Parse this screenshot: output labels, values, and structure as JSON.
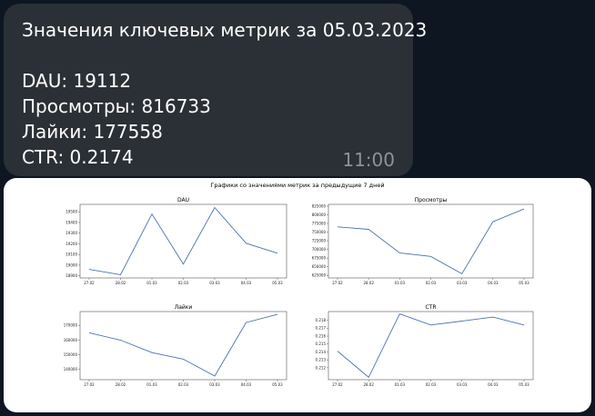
{
  "message": {
    "lines": [
      "Значения ключевых метрик за 05.03.2023",
      "",
      "DAU: 19112",
      "Просмотры: 816733",
      "Лайки: 177558",
      "CTR: 0.2174"
    ],
    "time": "11:00"
  },
  "figure": {
    "suptitle": "Графики со значениями метрик за предыдущие 7 дней",
    "line_color": "#4c72b0"
  },
  "chart_data": [
    {
      "type": "line",
      "title": "DAU",
      "categories": [
        "27.02",
        "28.02",
        "01.03",
        "02.03",
        "03.03",
        "04.03",
        "05.03"
      ],
      "values": [
        18960,
        18910,
        19480,
        19010,
        19540,
        19205,
        19112
      ],
      "yticks": [
        18900,
        19000,
        19100,
        19200,
        19300,
        19400,
        19500
      ],
      "ylim": [
        18880,
        19570
      ]
    },
    {
      "type": "line",
      "title": "Просмотры",
      "categories": [
        "27.02",
        "28.02",
        "01.03",
        "02.03",
        "03.03",
        "04.03",
        "05.03"
      ],
      "values": [
        765000,
        758000,
        690000,
        680000,
        630000,
        780000,
        816733
      ],
      "yticks": [
        625000,
        650000,
        675000,
        700000,
        725000,
        750000,
        775000,
        800000,
        825000
      ],
      "ylim": [
        618000,
        830000
      ]
    },
    {
      "type": "line",
      "title": "Лайки",
      "categories": [
        "27.02",
        "28.02",
        "01.03",
        "02.03",
        "03.03",
        "04.03",
        "05.03"
      ],
      "values": [
        165000,
        160000,
        151500,
        147000,
        135500,
        172000,
        177558
      ],
      "yticks": [
        140000,
        150000,
        160000,
        170000
      ],
      "ylim": [
        133000,
        179500
      ]
    },
    {
      "type": "line",
      "title": "CTR",
      "categories": [
        "27.02",
        "28.02",
        "01.03",
        "02.03",
        "03.03",
        "04.03",
        "05.03"
      ],
      "values": [
        0.2141,
        0.2108,
        0.2188,
        0.2174,
        0.2179,
        0.2184,
        0.2174
      ],
      "yticks": [
        0.212,
        0.213,
        0.214,
        0.215,
        0.216,
        0.217,
        0.218
      ],
      "ylim": [
        0.2105,
        0.2191
      ]
    }
  ]
}
